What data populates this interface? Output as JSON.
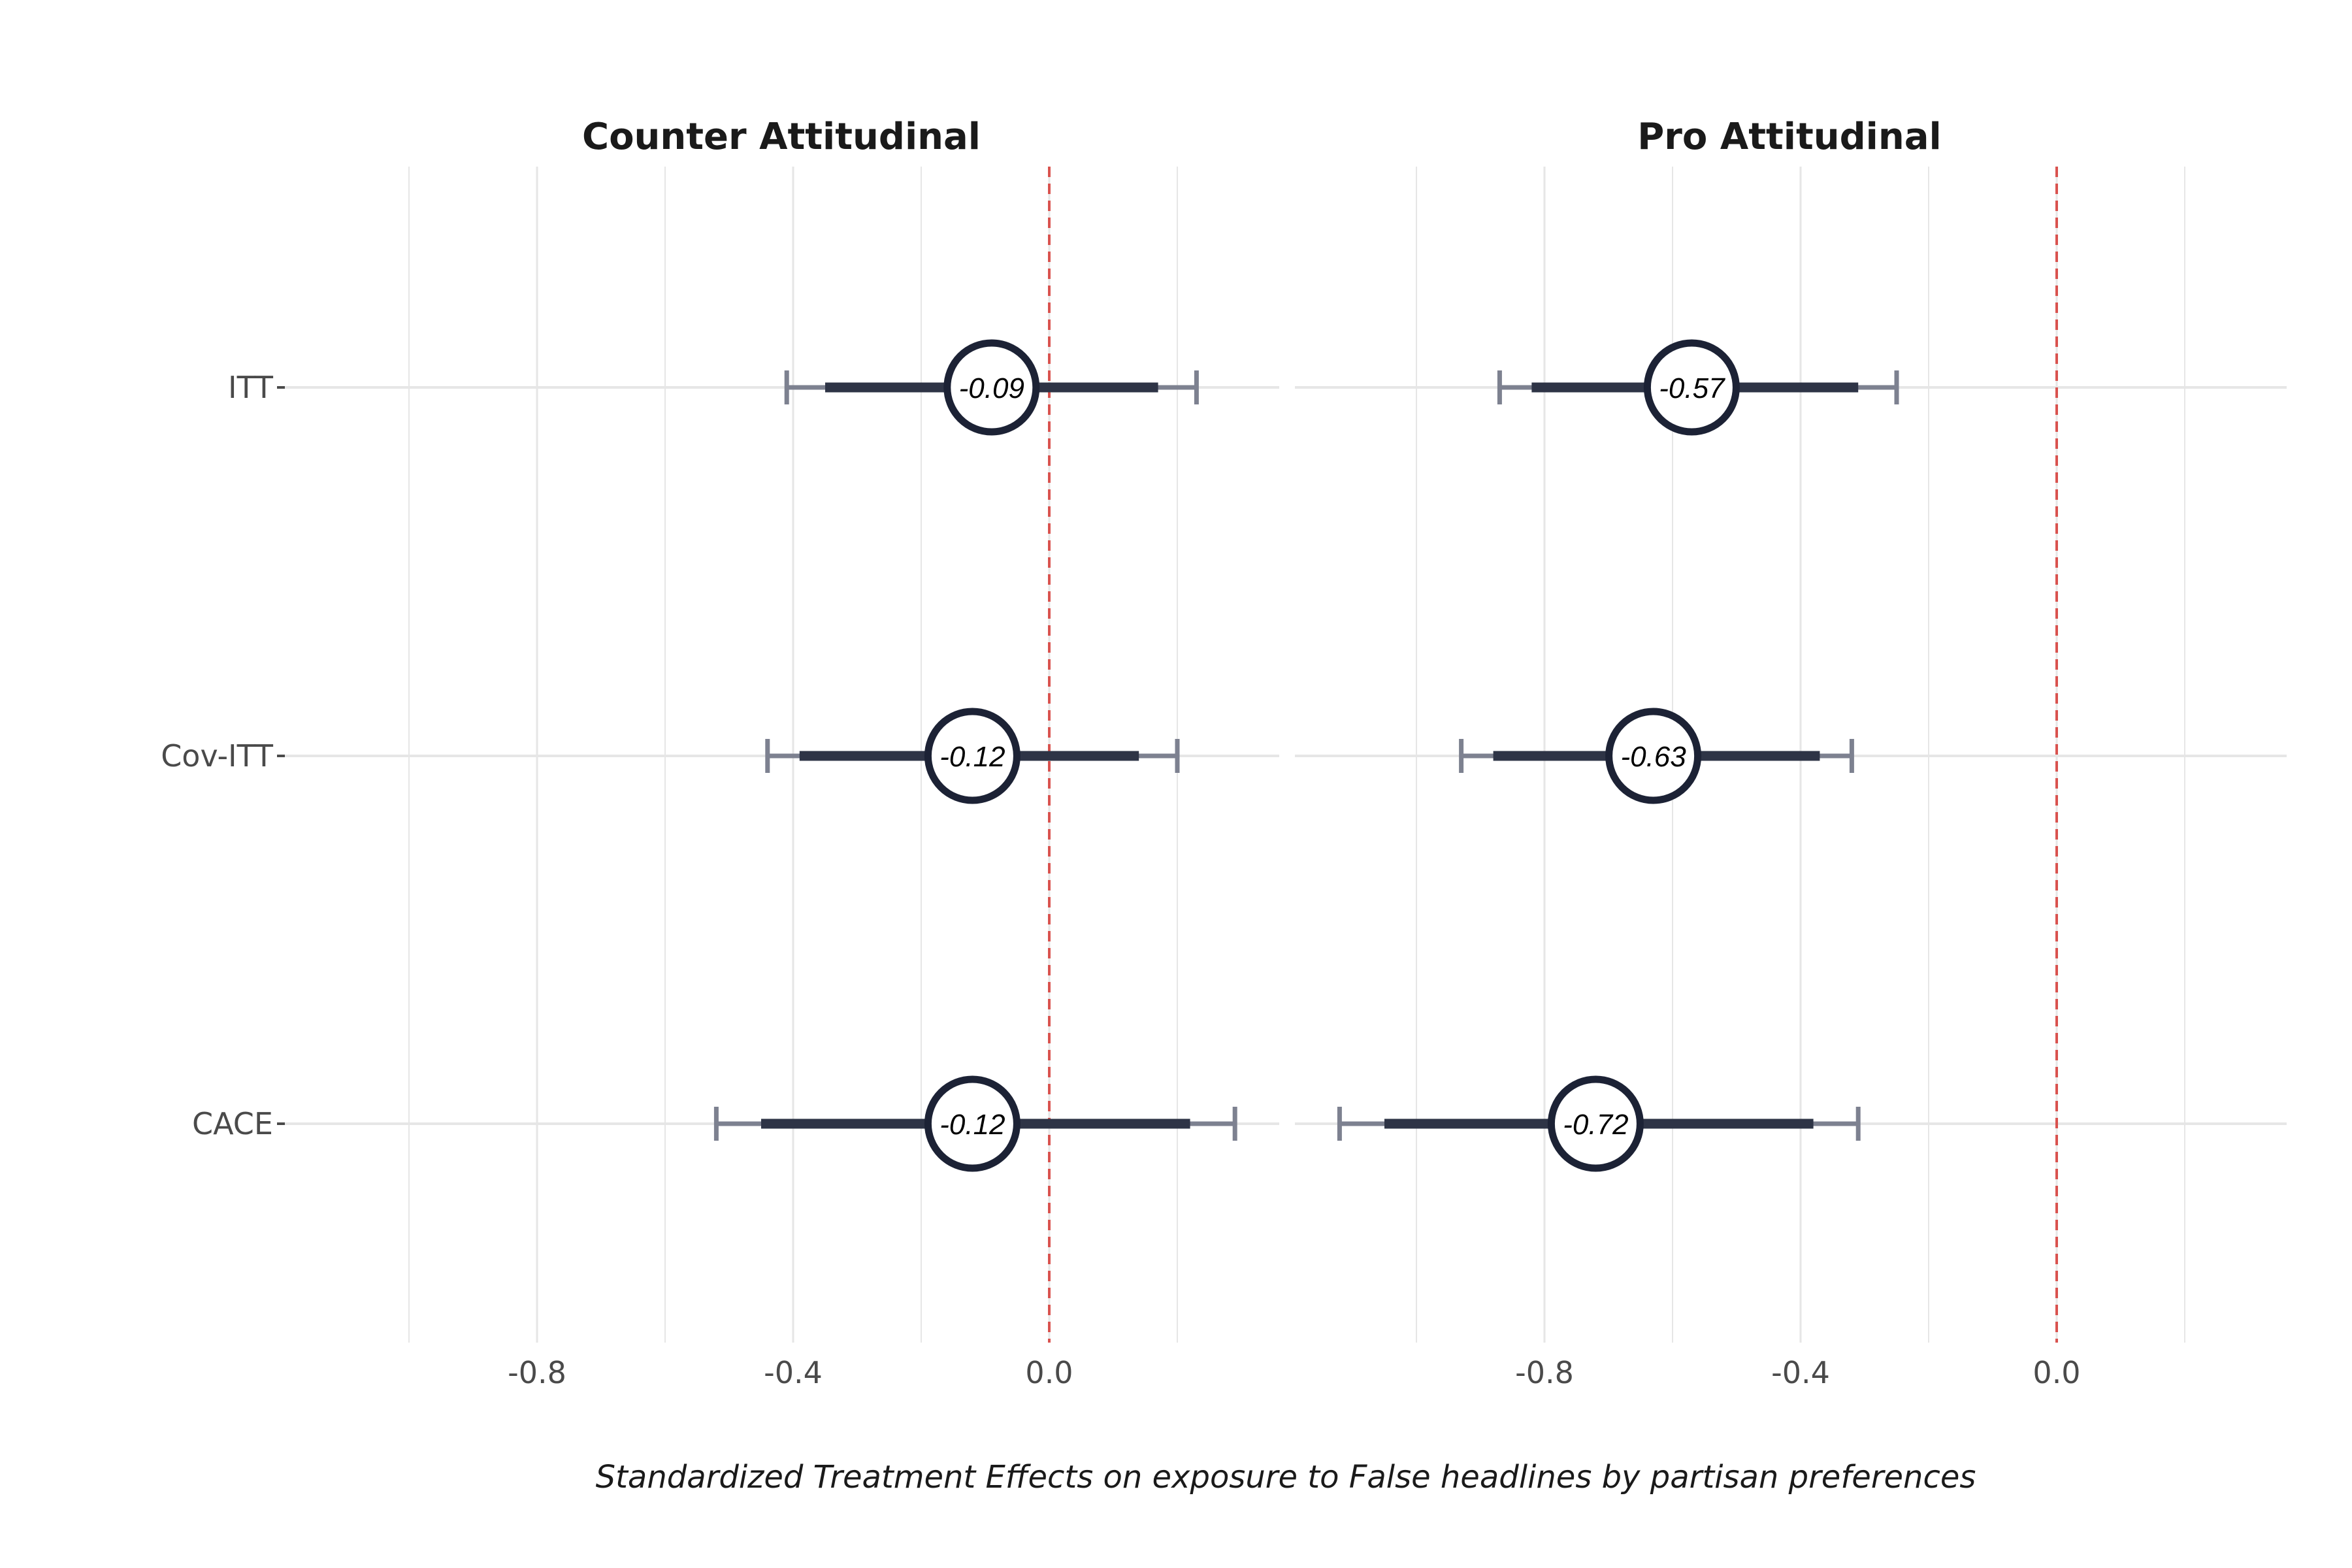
{
  "chart_data": {
    "type": "forest",
    "xlabel": "Standardized Treatment Effects on exposure to False headlines by partisan preferences",
    "ylabel": "",
    "categories": [
      "ITT",
      "Cov-ITT",
      "CACE"
    ],
    "xticks": [
      -0.8,
      -0.4,
      0.0
    ],
    "xtick_labels": [
      "-0.8",
      "-0.4",
      "0.0"
    ],
    "xlim": [
      -1.0,
      0.36
    ],
    "reference_line": 0.0,
    "grid": true,
    "colors": {
      "point": "#1c2235",
      "inner_interval": "#2e3446",
      "outer_interval": "#7d8190",
      "reference": "#d9534f",
      "grid": "#e6e6e6"
    },
    "panels": [
      {
        "title": "Counter Attitudinal",
        "rows": [
          {
            "label": "ITT",
            "estimate": -0.09,
            "estimate_label": "-0.09",
            "ci_inner": [
              -0.35,
              0.17
            ],
            "ci_outer": [
              -0.41,
              0.23
            ]
          },
          {
            "label": "Cov-ITT",
            "estimate": -0.12,
            "estimate_label": "-0.12",
            "ci_inner": [
              -0.39,
              0.14
            ],
            "ci_outer": [
              -0.44,
              0.2
            ]
          },
          {
            "label": "CACE",
            "estimate": -0.12,
            "estimate_label": "-0.12",
            "ci_inner": [
              -0.45,
              0.22
            ],
            "ci_outer": [
              -0.52,
              0.29
            ]
          }
        ]
      },
      {
        "title": "Pro Attitudinal",
        "rows": [
          {
            "label": "ITT",
            "estimate": -0.57,
            "estimate_label": "-0.57",
            "ci_inner": [
              -0.82,
              -0.31
            ],
            "ci_outer": [
              -0.87,
              -0.25
            ]
          },
          {
            "label": "Cov-ITT",
            "estimate": -0.63,
            "estimate_label": "-0.63",
            "ci_inner": [
              -0.88,
              -0.37
            ],
            "ci_outer": [
              -0.93,
              -0.32
            ]
          },
          {
            "label": "CACE",
            "estimate": -0.72,
            "estimate_label": "-0.72",
            "ci_inner": [
              -1.05,
              -0.38
            ],
            "ci_outer": [
              -1.12,
              -0.31
            ]
          }
        ]
      }
    ]
  }
}
